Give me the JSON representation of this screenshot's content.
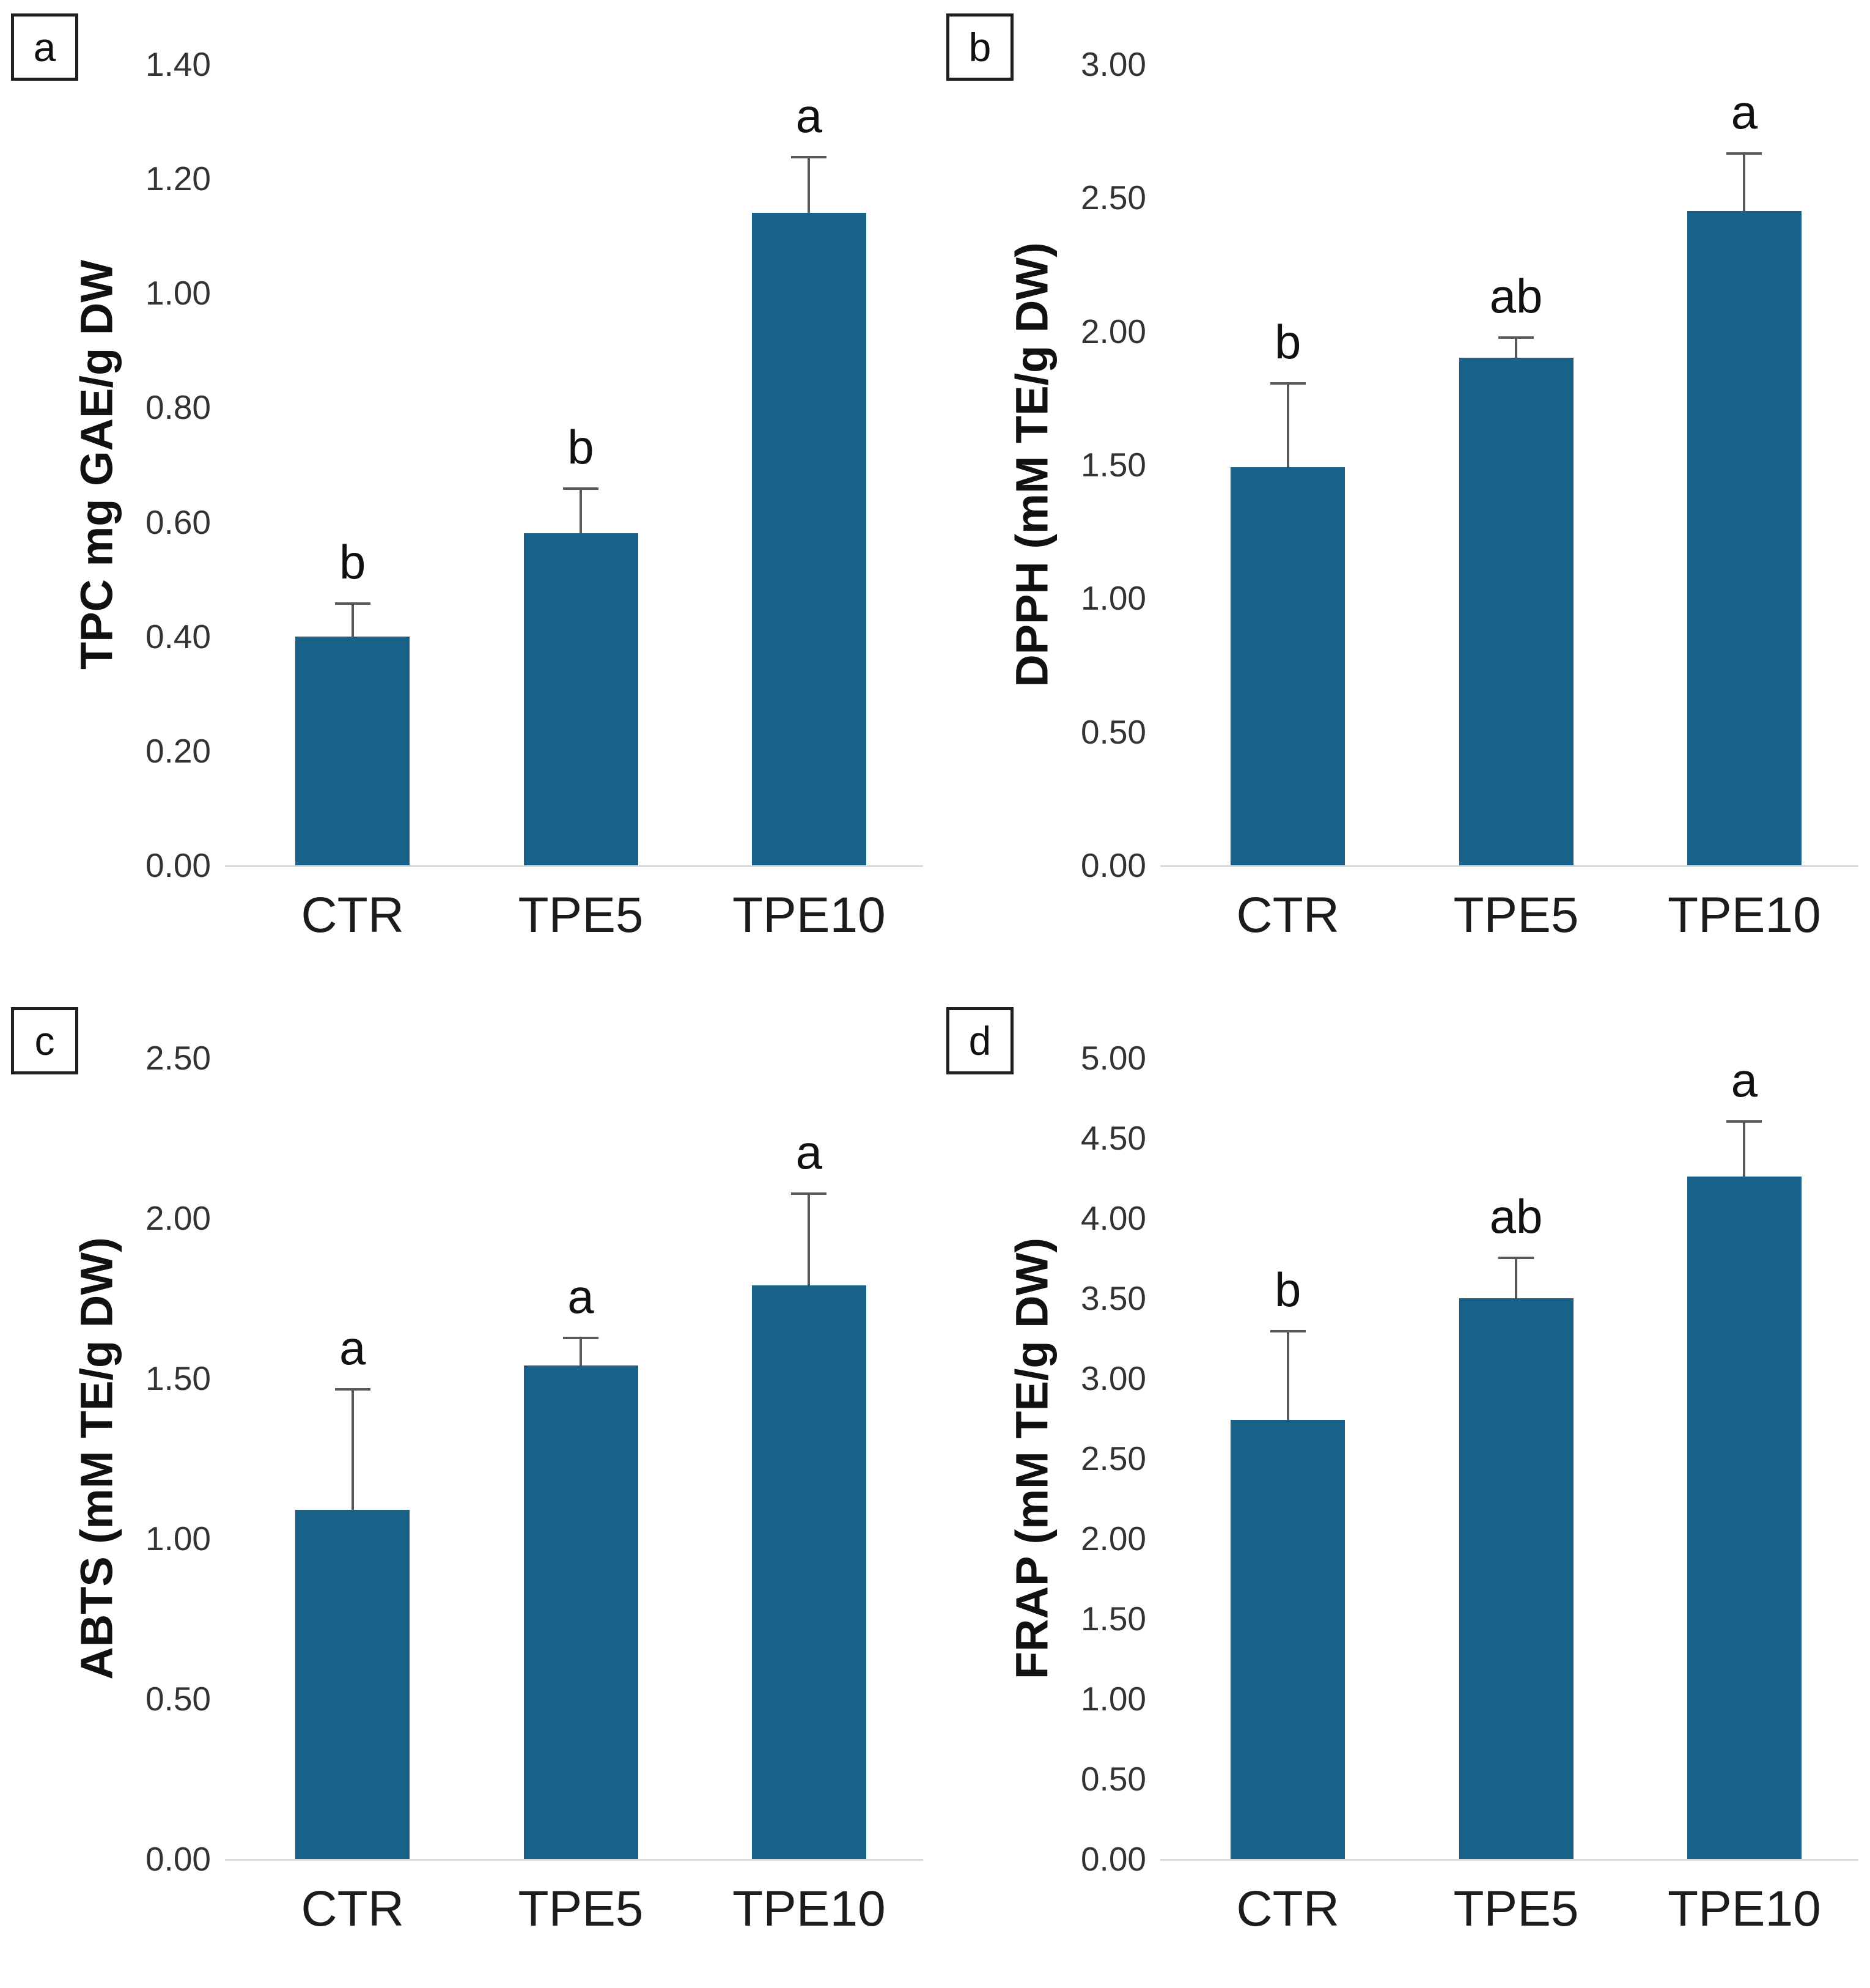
{
  "figure": {
    "background": "#ffffff",
    "layout": "2x2-panel-bar-figure"
  },
  "colors": {
    "bar_fill": "#1a618a",
    "axis_line": "#d9d9d9",
    "error_bar": "#595959",
    "tick_text": "#333333",
    "label_text": "#111111"
  },
  "chart_data": [
    {
      "type": "bar",
      "panel_label": "a",
      "title": "",
      "xlabel": "",
      "ylabel": "TPC mg GAE/g DW",
      "ylim": [
        0.0,
        1.4
      ],
      "ytick_step": 0.2,
      "tick_decimals": 2,
      "grid": false,
      "legend": false,
      "categories": [
        "CTR",
        "TPE5",
        "TPE10"
      ],
      "values": [
        0.4,
        0.58,
        1.14
      ],
      "error_upper": [
        0.46,
        0.66,
        1.24
      ],
      "sig_letters": [
        "b",
        "b",
        "a"
      ]
    },
    {
      "type": "bar",
      "panel_label": "b",
      "title": "",
      "xlabel": "",
      "ylabel": "DPPH (mM TE/g DW)",
      "ylim": [
        0.0,
        3.0
      ],
      "ytick_step": 0.5,
      "tick_decimals": 2,
      "grid": false,
      "legend": false,
      "categories": [
        "CTR",
        "TPE5",
        "TPE10"
      ],
      "values": [
        1.49,
        1.9,
        2.45
      ],
      "error_upper": [
        1.81,
        1.98,
        2.67
      ],
      "sig_letters": [
        "b",
        "ab",
        "a"
      ]
    },
    {
      "type": "bar",
      "panel_label": "c",
      "title": "",
      "xlabel": "",
      "ylabel": "ABTS (mM TE/g DW)",
      "ylim": [
        0.0,
        2.5
      ],
      "ytick_step": 0.5,
      "tick_decimals": 2,
      "grid": false,
      "legend": false,
      "categories": [
        "CTR",
        "TPE5",
        "TPE10"
      ],
      "values": [
        1.09,
        1.54,
        1.79
      ],
      "error_upper": [
        1.47,
        1.63,
        2.08
      ],
      "sig_letters": [
        "a",
        "a",
        "a"
      ]
    },
    {
      "type": "bar",
      "panel_label": "d",
      "title": "",
      "xlabel": "",
      "ylabel": "FRAP (mM TE/g DW)",
      "ylim": [
        0.0,
        5.0
      ],
      "ytick_step": 0.5,
      "tick_decimals": 2,
      "grid": false,
      "legend": false,
      "categories": [
        "CTR",
        "TPE5",
        "TPE10"
      ],
      "values": [
        2.74,
        3.5,
        4.26
      ],
      "error_upper": [
        3.3,
        3.76,
        4.61
      ],
      "sig_letters": [
        "b",
        "ab",
        "a"
      ]
    }
  ]
}
